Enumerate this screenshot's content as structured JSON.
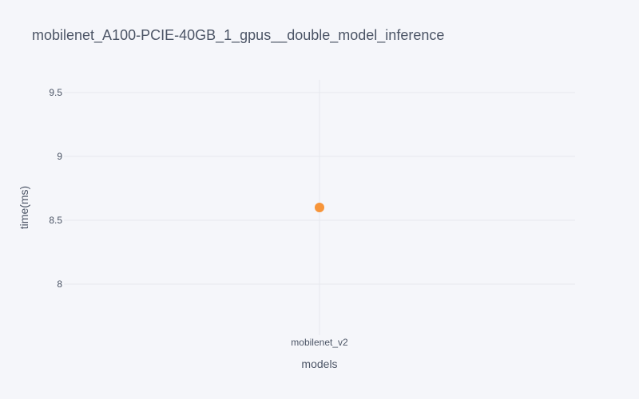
{
  "chart_data": {
    "type": "scatter",
    "title": "mobilenet_A100-PCIE-40GB_1_gpus__double_model_inference",
    "xlabel": "models",
    "ylabel": "time(ms)",
    "categories": [
      "mobilenet_v2"
    ],
    "series": [
      {
        "values": [
          8.6
        ],
        "color": "#f7953a"
      }
    ],
    "ylim": [
      7.6,
      9.6
    ],
    "yticks": [
      8,
      8.5,
      9,
      9.5
    ],
    "ytick_labels": [
      "8",
      "8.5",
      "9",
      "9.5"
    ],
    "grid": true,
    "legend": "none"
  },
  "colors": {
    "background": "#f5f6fa",
    "grid": "#e6e8ee",
    "text": "#4c5566",
    "marker": "#f7953a"
  }
}
